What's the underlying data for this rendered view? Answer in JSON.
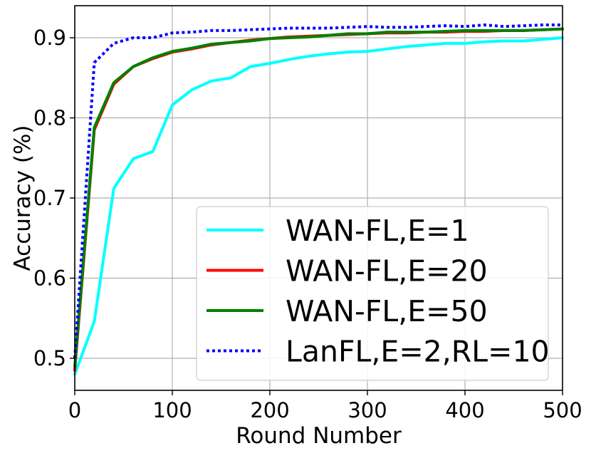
{
  "chart_data": {
    "type": "line",
    "title": "",
    "xlabel": "Round Number",
    "ylabel": "Accuracy (%)",
    "xlim": [
      0,
      500
    ],
    "ylim": [
      0.46,
      0.94
    ],
    "xticks": [
      0,
      100,
      200,
      300,
      400,
      500
    ],
    "yticks": [
      0.5,
      0.6,
      0.7,
      0.8,
      0.9
    ],
    "grid": true,
    "legend_position": "lower-right",
    "series": [
      {
        "name": "WAN-FL,E=1",
        "color": "#00ffff",
        "style": "solid",
        "x": [
          0,
          20,
          40,
          60,
          80,
          100,
          120,
          140,
          160,
          180,
          200,
          220,
          240,
          260,
          280,
          300,
          320,
          340,
          360,
          380,
          400,
          420,
          440,
          460,
          480,
          500
        ],
        "y": [
          0.48,
          0.546,
          0.712,
          0.749,
          0.758,
          0.816,
          0.835,
          0.846,
          0.85,
          0.864,
          0.868,
          0.873,
          0.877,
          0.88,
          0.882,
          0.883,
          0.886,
          0.889,
          0.891,
          0.893,
          0.893,
          0.895,
          0.896,
          0.896,
          0.898,
          0.9
        ]
      },
      {
        "name": "WAN-FL,E=20",
        "color": "#ff0000",
        "style": "solid",
        "x": [
          0,
          20,
          40,
          60,
          80,
          100,
          120,
          140,
          160,
          180,
          200,
          220,
          240,
          260,
          280,
          300,
          320,
          340,
          360,
          380,
          400,
          420,
          440,
          460,
          480,
          500
        ],
        "y": [
          0.485,
          0.785,
          0.842,
          0.864,
          0.874,
          0.882,
          0.886,
          0.891,
          0.894,
          0.897,
          0.899,
          0.901,
          0.902,
          0.903,
          0.904,
          0.905,
          0.906,
          0.906,
          0.907,
          0.907,
          0.908,
          0.908,
          0.909,
          0.909,
          0.91,
          0.911
        ]
      },
      {
        "name": "WAN-FL,E=50",
        "color": "#008000",
        "style": "solid",
        "x": [
          0,
          20,
          40,
          60,
          80,
          100,
          120,
          140,
          160,
          180,
          200,
          220,
          240,
          260,
          280,
          300,
          320,
          340,
          360,
          380,
          400,
          420,
          440,
          460,
          480,
          500
        ],
        "y": [
          0.49,
          0.788,
          0.844,
          0.864,
          0.875,
          0.883,
          0.887,
          0.892,
          0.894,
          0.896,
          0.899,
          0.9,
          0.901,
          0.903,
          0.905,
          0.905,
          0.907,
          0.907,
          0.907,
          0.908,
          0.909,
          0.909,
          0.909,
          0.909,
          0.91,
          0.911
        ]
      },
      {
        "name": "LanFL,E=2,RL=10",
        "color": "#0000ff",
        "style": "dotted",
        "x": [
          0,
          20,
          40,
          60,
          80,
          100,
          120,
          140,
          160,
          180,
          200,
          220,
          240,
          260,
          280,
          300,
          320,
          340,
          360,
          380,
          400,
          420,
          440,
          460,
          480,
          500
        ],
        "y": [
          0.5,
          0.869,
          0.893,
          0.9,
          0.9,
          0.906,
          0.907,
          0.909,
          0.909,
          0.91,
          0.911,
          0.912,
          0.912,
          0.912,
          0.913,
          0.914,
          0.913,
          0.913,
          0.914,
          0.915,
          0.914,
          0.916,
          0.914,
          0.915,
          0.916,
          0.916
        ]
      }
    ]
  }
}
